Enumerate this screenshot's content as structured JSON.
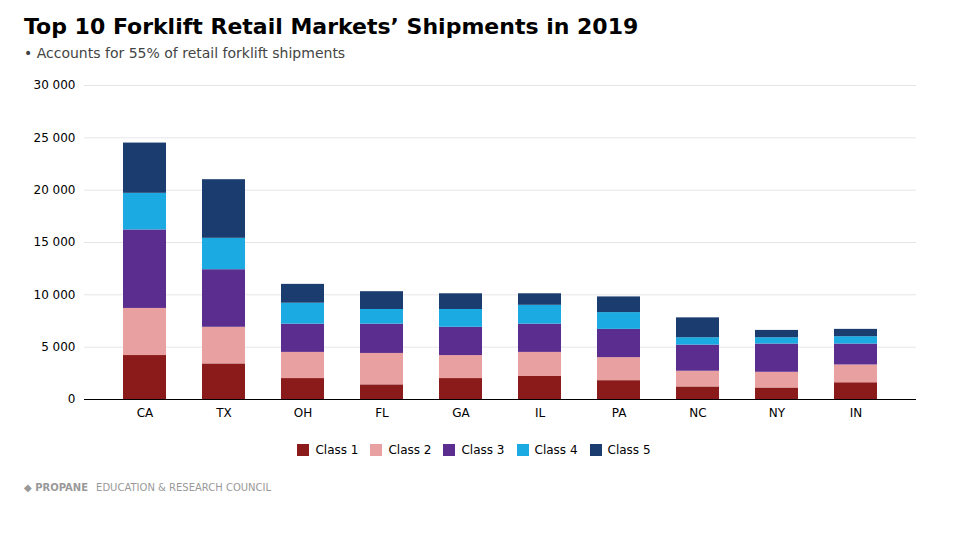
{
  "chart_data": {
    "type": "bar",
    "title": "Top 10 Forklift Retail Markets’ Shipments in 2019",
    "subtitle": "• Accounts for 55% of retail forklift shipments",
    "annotations": [
      "◆  PROPANE",
      "EDUCATION & RESEARCH COUNCIL"
    ],
    "categories": [
      "CA",
      "TX",
      "OH",
      "FL",
      "GA",
      "IL",
      "PA",
      "NC",
      "NY",
      "IN"
    ],
    "series": [
      {
        "name": "Class 1",
        "color": "#8B1A1A",
        "values": [
          4200,
          3400,
          2000,
          1400,
          2000,
          2200,
          1800,
          1200,
          1100,
          1600
        ]
      },
      {
        "name": "Class 2",
        "color": "#E8A0A0",
        "values": [
          4500,
          3500,
          2500,
          3000,
          2200,
          2300,
          2200,
          1500,
          1500,
          1700
        ]
      },
      {
        "name": "Class 3",
        "color": "#5B2D8E",
        "values": [
          7500,
          5500,
          2700,
          2800,
          2700,
          2700,
          2700,
          2500,
          2700,
          2000
        ]
      },
      {
        "name": "Class 4",
        "color": "#1BAAE1",
        "values": [
          3500,
          3000,
          2000,
          1400,
          1700,
          1800,
          1600,
          700,
          600,
          700
        ]
      },
      {
        "name": "Class 5",
        "color": "#1A3C6E",
        "values": [
          4800,
          5600,
          1800,
          1700,
          1500,
          1100,
          1500,
          1900,
          700,
          700
        ]
      }
    ],
    "stacked": true,
    "ylim": [
      0,
      30000
    ],
    "yticks": [
      0,
      {
        "value": 5000,
        "label": "5 000"
      },
      {
        "value": 10000,
        "label": "10 000"
      },
      {
        "value": 15000,
        "label": "15 000"
      },
      {
        "value": 20000,
        "label": "20 000"
      },
      {
        "value": 25000,
        "label": "25 000"
      },
      {
        "value": 30000,
        "label": "30 000"
      }
    ],
    "grid": true,
    "legend": "bottom"
  }
}
